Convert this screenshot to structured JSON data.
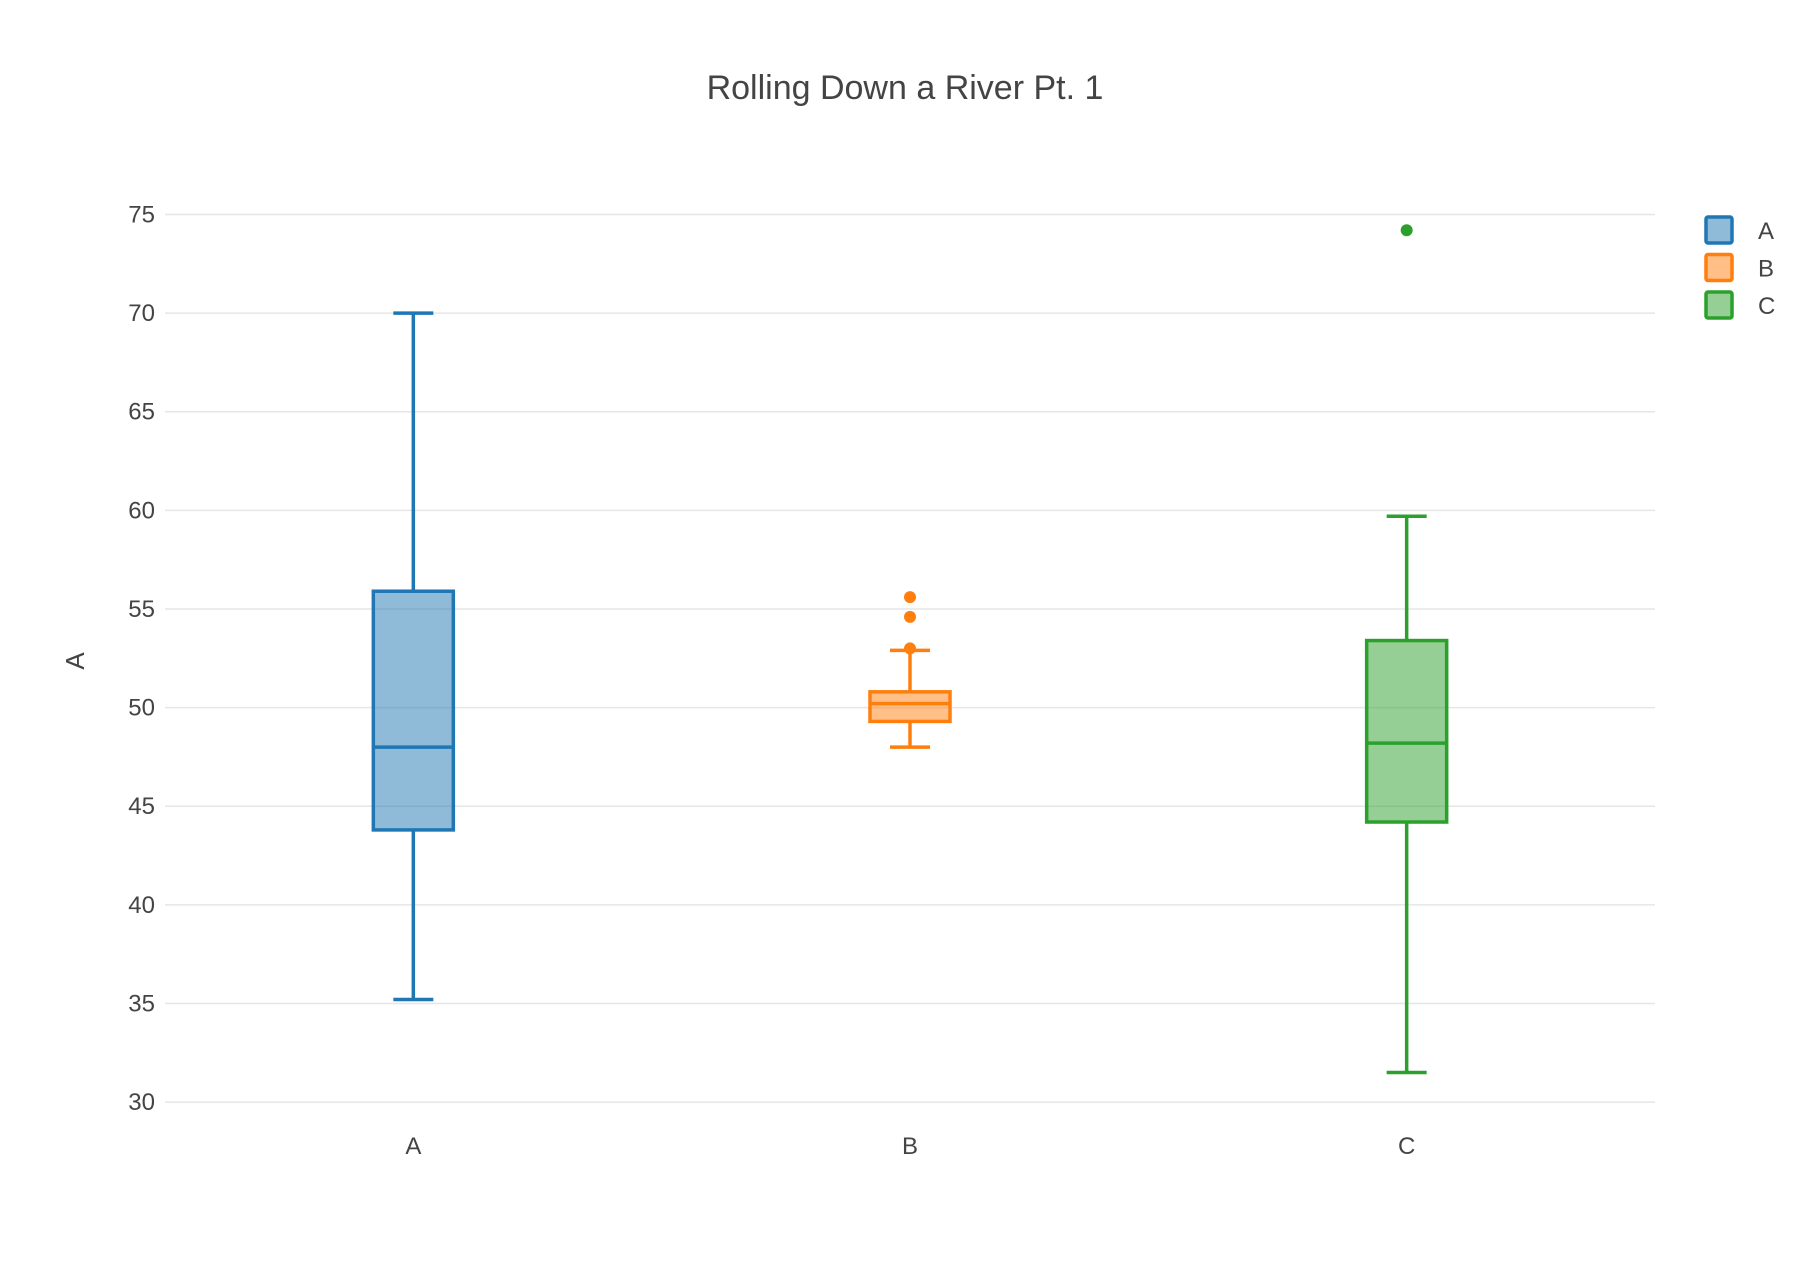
{
  "chart_data": {
    "type": "box",
    "title": "Rolling Down a River Pt. 1",
    "xlabel": "",
    "ylabel": "A",
    "ylim": [
      29.5,
      77
    ],
    "yticks": [
      30,
      35,
      40,
      45,
      50,
      55,
      60,
      65,
      70,
      75
    ],
    "categories": [
      "A",
      "B",
      "C"
    ],
    "grid": true,
    "legend_position": "top-right",
    "series": [
      {
        "name": "A",
        "color": "#1f77b4",
        "fill": "rgba(31,119,180,0.5)",
        "whisker_low": 35.2,
        "q1": 43.8,
        "median": 48.0,
        "q3": 55.9,
        "whisker_high": 70.0,
        "outliers": []
      },
      {
        "name": "B",
        "color": "#ff7f0e",
        "fill": "rgba(255,127,14,0.5)",
        "whisker_low": 48.0,
        "q1": 49.3,
        "median": 50.2,
        "q3": 50.8,
        "whisker_high": 52.9,
        "outliers": [
          53.0,
          54.6,
          55.6
        ]
      },
      {
        "name": "C",
        "color": "#2ca02c",
        "fill": "rgba(44,160,44,0.5)",
        "whisker_low": 31.5,
        "q1": 44.2,
        "median": 48.2,
        "q3": 53.4,
        "whisker_high": 59.7,
        "outliers": [
          74.2
        ]
      }
    ]
  }
}
